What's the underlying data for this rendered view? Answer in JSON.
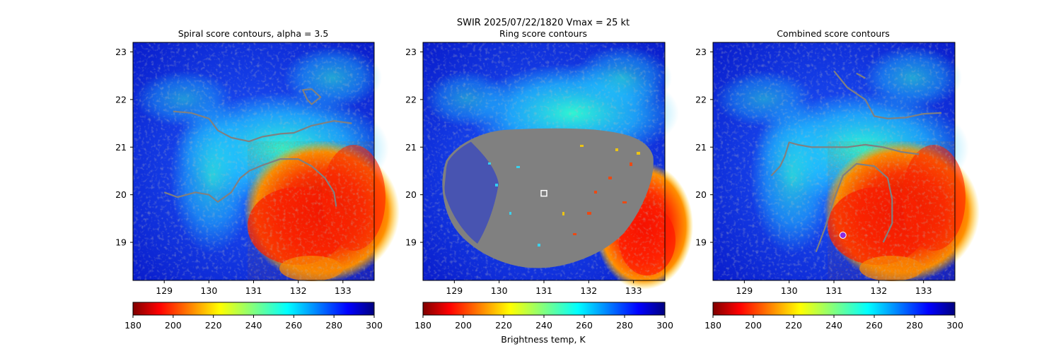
{
  "figure": {
    "suptitle_line1": "SWIR  2025/07/22/1820    Vmax = 25 kt",
    "colorbar_label": "Brightness temp, K"
  },
  "colors": {
    "frame": "#000000",
    "contour": "#808080",
    "center_marker": "#ffffff",
    "combined_marker": "#8a2be2",
    "colormap": [
      "#800000",
      "#ff0000",
      "#ff8000",
      "#ffff00",
      "#80ff80",
      "#00ffff",
      "#0080ff",
      "#0000ff",
      "#000080"
    ]
  },
  "chart_data": [
    {
      "type": "heatmap",
      "panel": "spiral",
      "title": "Spiral score contours, alpha =  3.5",
      "xlim": [
        128.3,
        133.7
      ],
      "ylim": [
        18.2,
        23.2
      ],
      "xticks": [
        129,
        130,
        131,
        132,
        133
      ],
      "yticks": [
        19,
        20,
        21,
        22,
        23
      ],
      "colorbar": {
        "range": [
          180,
          300
        ],
        "ticks": [
          180,
          200,
          220,
          240,
          260,
          280,
          300
        ]
      },
      "contours": [
        [
          [
            129.0,
            20.05
          ],
          [
            129.3,
            19.95
          ],
          [
            129.7,
            20.05
          ],
          [
            130.0,
            20.0
          ],
          [
            130.2,
            19.85
          ],
          [
            130.5,
            20.05
          ],
          [
            130.7,
            20.35
          ],
          [
            130.9,
            20.5
          ],
          [
            131.2,
            20.62
          ],
          [
            131.6,
            20.75
          ],
          [
            132.0,
            20.75
          ],
          [
            132.3,
            20.6
          ],
          [
            132.6,
            20.35
          ],
          [
            132.8,
            20.05
          ],
          [
            132.85,
            19.75
          ]
        ],
        [
          [
            129.2,
            21.75
          ],
          [
            129.6,
            21.72
          ],
          [
            130.0,
            21.6
          ],
          [
            130.2,
            21.35
          ],
          [
            130.5,
            21.2
          ],
          [
            130.9,
            21.12
          ],
          [
            131.2,
            21.22
          ],
          [
            131.6,
            21.28
          ],
          [
            131.9,
            21.3
          ],
          [
            132.3,
            21.45
          ],
          [
            132.8,
            21.55
          ],
          [
            133.2,
            21.5
          ]
        ],
        [
          [
            132.2,
            22.0
          ],
          [
            132.1,
            22.2
          ],
          [
            132.3,
            22.22
          ],
          [
            132.5,
            22.05
          ],
          [
            132.3,
            21.9
          ],
          [
            132.2,
            22.0
          ]
        ]
      ]
    },
    {
      "type": "heatmap",
      "panel": "ring",
      "title": "Ring score contours",
      "xlim": [
        128.3,
        133.7
      ],
      "ylim": [
        18.2,
        23.2
      ],
      "xticks": [
        129,
        130,
        131,
        132,
        133
      ],
      "yticks": [
        19,
        20,
        21,
        22,
        23
      ],
      "colorbar": {
        "range": [
          180,
          300
        ],
        "ticks": [
          180,
          200,
          220,
          240,
          260,
          280,
          300
        ]
      },
      "center_marker": [
        131.0,
        20.03
      ]
    },
    {
      "type": "heatmap",
      "panel": "combined",
      "title": "Combined score contours",
      "xlim": [
        128.3,
        133.7
      ],
      "ylim": [
        18.2,
        23.2
      ],
      "xticks": [
        129,
        130,
        131,
        132,
        133
      ],
      "yticks": [
        19,
        20,
        21,
        22,
        23
      ],
      "colorbar": {
        "range": [
          180,
          300
        ],
        "ticks": [
          180,
          200,
          220,
          240,
          260,
          280,
          300
        ]
      },
      "marker": [
        131.2,
        19.15
      ],
      "contours": [
        [
          [
            129.6,
            20.4
          ],
          [
            129.8,
            20.6
          ],
          [
            129.9,
            20.8
          ],
          [
            130.0,
            21.1
          ],
          [
            130.2,
            21.05
          ],
          [
            130.5,
            21.0
          ],
          [
            130.9,
            21.0
          ],
          [
            131.3,
            21.0
          ],
          [
            131.7,
            21.05
          ],
          [
            132.1,
            21.0
          ],
          [
            132.5,
            20.9
          ],
          [
            132.9,
            20.85
          ]
        ],
        [
          [
            130.6,
            18.8
          ],
          [
            130.8,
            19.3
          ],
          [
            131.0,
            19.9
          ],
          [
            131.2,
            20.4
          ],
          [
            131.5,
            20.65
          ],
          [
            131.9,
            20.6
          ],
          [
            132.2,
            20.35
          ],
          [
            132.3,
            19.9
          ],
          [
            132.3,
            19.4
          ],
          [
            132.1,
            19.0
          ]
        ],
        [
          [
            131.0,
            22.6
          ],
          [
            131.3,
            22.25
          ],
          [
            131.7,
            22.0
          ],
          [
            131.9,
            21.65
          ],
          [
            132.2,
            21.6
          ],
          [
            132.6,
            21.62
          ],
          [
            133.0,
            21.7
          ],
          [
            133.4,
            21.72
          ]
        ],
        [
          [
            131.5,
            22.55
          ],
          [
            131.7,
            22.45
          ]
        ]
      ]
    }
  ]
}
